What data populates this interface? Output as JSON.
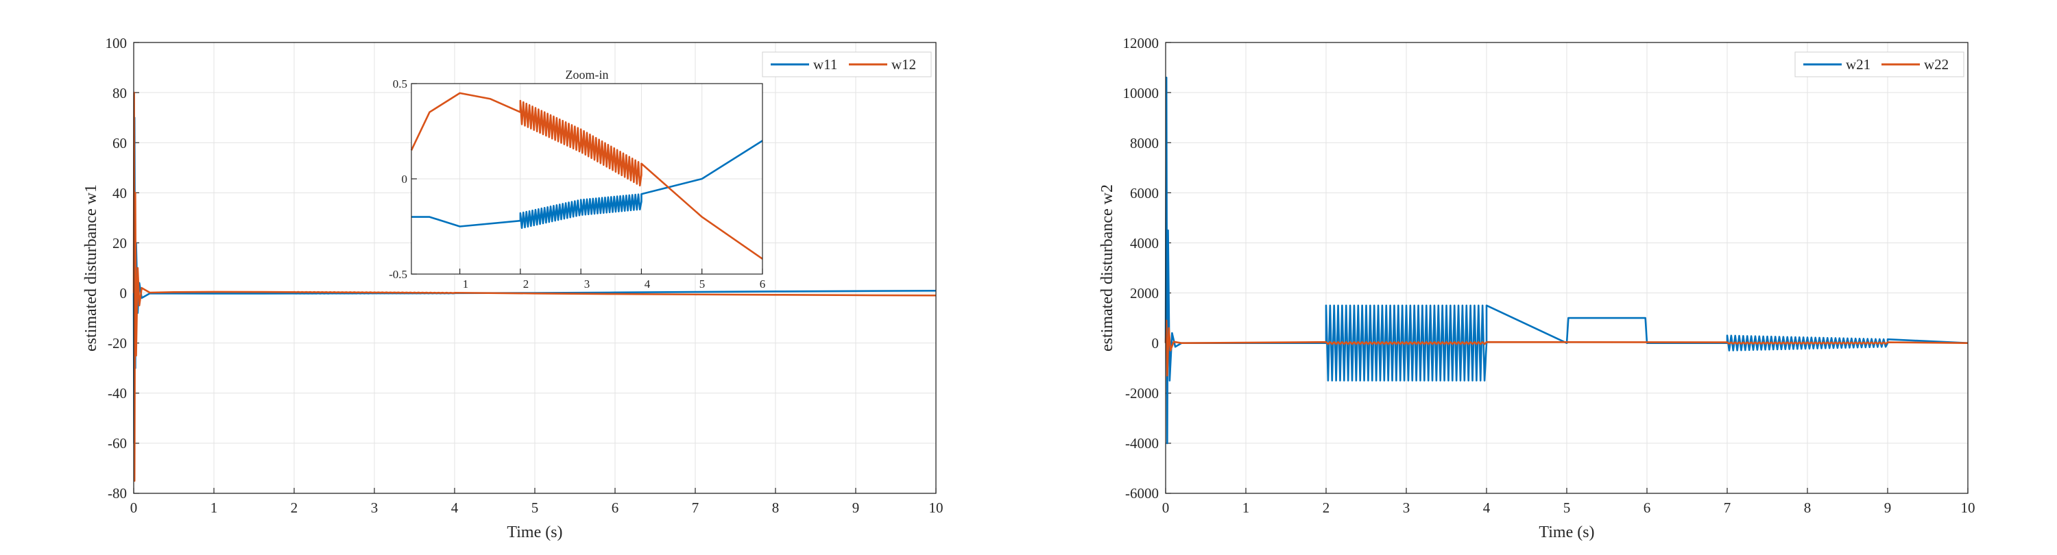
{
  "chart_data": [
    {
      "type": "line",
      "xlabel": "Time (s)",
      "ylabel": "estimated disturbance w1",
      "xlim": [
        0,
        10
      ],
      "ylim": [
        -80,
        100
      ],
      "xticks": [
        "0",
        "1",
        "2",
        "3",
        "4",
        "5",
        "6",
        "7",
        "8",
        "9",
        "10"
      ],
      "yticks": [
        "-80",
        "-60",
        "-40",
        "-20",
        "0",
        "20",
        "40",
        "60",
        "80",
        "100"
      ],
      "grid": true,
      "legend_position": "top-right",
      "series": [
        {
          "name": "w11",
          "color": "#0072BD",
          "points": [
            [
              0,
              0
            ],
            [
              0.005,
              -60
            ],
            [
              0.01,
              70
            ],
            [
              0.02,
              -30
            ],
            [
              0.03,
              20
            ],
            [
              0.05,
              -8
            ],
            [
              0.07,
              4
            ],
            [
              0.1,
              -2
            ],
            [
              0.2,
              -0.2
            ],
            [
              0.5,
              -0.2
            ],
            [
              1,
              -0.25
            ],
            [
              2,
              -0.22
            ],
            [
              3,
              -0.15
            ],
            [
              4,
              -0.12
            ],
            [
              5,
              0
            ],
            [
              6,
              0.2
            ],
            [
              7,
              0.4
            ],
            [
              8,
              0.6
            ],
            [
              9,
              0.75
            ],
            [
              10,
              0.9
            ]
          ],
          "oscillations": [
            {
              "x_start": 2,
              "x_end": 4,
              "amplitude": 0.04
            }
          ]
        },
        {
          "name": "w12",
          "color": "#D95319",
          "points": [
            [
              0,
              0
            ],
            [
              0.005,
              80
            ],
            [
              0.01,
              -75
            ],
            [
              0.02,
              40
            ],
            [
              0.03,
              -25
            ],
            [
              0.05,
              10
            ],
            [
              0.07,
              -5
            ],
            [
              0.1,
              2
            ],
            [
              0.2,
              0.15
            ],
            [
              0.5,
              0.35
            ],
            [
              1,
              0.45
            ],
            [
              1.5,
              0.42
            ],
            [
              2,
              0.35
            ],
            [
              3,
              0.2
            ],
            [
              4,
              0.02
            ],
            [
              5,
              -0.2
            ],
            [
              6,
              -0.42
            ],
            [
              7,
              -0.6
            ],
            [
              8,
              -0.75
            ],
            [
              9,
              -0.9
            ],
            [
              10,
              -1.0
            ]
          ],
          "oscillations": [
            {
              "x_start": 2,
              "x_end": 4,
              "amplitude": 0.06
            }
          ]
        }
      ],
      "inset": {
        "title": "Zoom-in",
        "xlim": [
          0.2,
          6
        ],
        "ylim": [
          -0.5,
          0.5
        ],
        "xticks": [
          "1",
          "2",
          "3",
          "4",
          "5",
          "6"
        ],
        "yticks": [
          "-0.5",
          "0",
          "0.5"
        ]
      }
    },
    {
      "type": "line",
      "xlabel": "Time (s)",
      "ylabel": "estimated disturbance w2",
      "xlim": [
        0,
        10
      ],
      "ylim": [
        -6000,
        12000
      ],
      "xticks": [
        "0",
        "1",
        "2",
        "3",
        "4",
        "5",
        "6",
        "7",
        "8",
        "9",
        "10"
      ],
      "yticks": [
        "-6000",
        "-4000",
        "-2000",
        "0",
        "2000",
        "4000",
        "6000",
        "8000",
        "10000",
        "12000"
      ],
      "grid": true,
      "legend_position": "top-right",
      "series": [
        {
          "name": "w21",
          "color": "#0072BD",
          "points": [
            [
              0,
              0
            ],
            [
              0.01,
              10600
            ],
            [
              0.02,
              -4000
            ],
            [
              0.03,
              4500
            ],
            [
              0.05,
              -1500
            ],
            [
              0.08,
              400
            ],
            [
              0.12,
              -150
            ],
            [
              0.2,
              0
            ],
            [
              2,
              0
            ],
            [
              4,
              0
            ],
            [
              5,
              0
            ],
            [
              5.02,
              1000
            ],
            [
              5.98,
              1000
            ],
            [
              6,
              0
            ],
            [
              7,
              0
            ],
            [
              9,
              0
            ],
            [
              10,
              0
            ]
          ],
          "oscillations": [
            {
              "x_start": 2,
              "x_end": 4,
              "amplitude": 1500
            },
            {
              "x_start": 7,
              "x_end": 9,
              "amplitude_start": 300,
              "amplitude_end": 150
            }
          ]
        },
        {
          "name": "w22",
          "color": "#D95319",
          "points": [
            [
              0,
              0
            ],
            [
              0.01,
              900
            ],
            [
              0.02,
              -1300
            ],
            [
              0.04,
              600
            ],
            [
              0.06,
              -300
            ],
            [
              0.1,
              50
            ],
            [
              0.2,
              0
            ],
            [
              10,
              0
            ]
          ],
          "oscillations": [
            {
              "x_start": 2,
              "x_end": 4,
              "amplitude": 40
            },
            {
              "x_start": 7,
              "x_end": 9,
              "amplitude": 30
            }
          ]
        }
      ]
    }
  ]
}
